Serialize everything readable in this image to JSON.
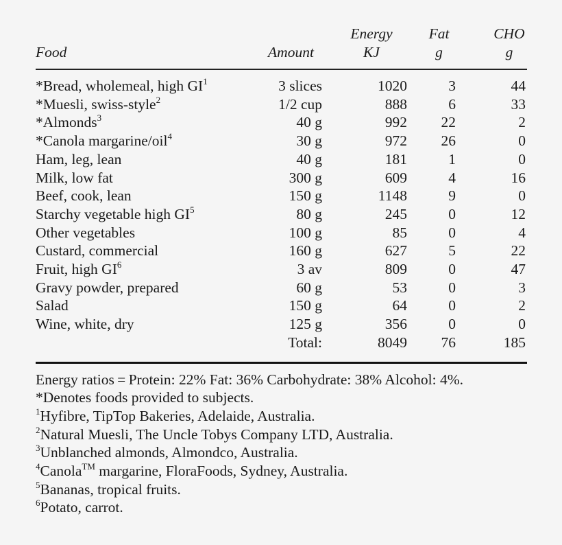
{
  "table": {
    "headers": {
      "food": "Food",
      "amount": "Amount",
      "energy_line1": "Energy",
      "energy_line2": "KJ",
      "fat_line1": "Fat",
      "fat_line2": "g",
      "cho_line1": "CHO",
      "cho_line2": "g"
    },
    "rows": [
      {
        "food": "*Bread, wholemeal, high GI",
        "sup": "1",
        "amount": "3 slices",
        "energy": "1020",
        "fat": "3",
        "cho": "44"
      },
      {
        "food": "*Muesli, swiss-style",
        "sup": "2",
        "amount": "1/2 cup",
        "energy": "888",
        "fat": "6",
        "cho": "33"
      },
      {
        "food": "*Almonds",
        "sup": "3",
        "amount": "40 g",
        "energy": "992",
        "fat": "22",
        "cho": "2"
      },
      {
        "food": "*Canola margarine/oil",
        "sup": "4",
        "amount": "30 g",
        "energy": "972",
        "fat": "26",
        "cho": "0"
      },
      {
        "food": "Ham, leg, lean",
        "sup": "",
        "amount": "40 g",
        "energy": "181",
        "fat": "1",
        "cho": "0"
      },
      {
        "food": "Milk, low fat",
        "sup": "",
        "amount": "300 g",
        "energy": "609",
        "fat": "4",
        "cho": "16"
      },
      {
        "food": "Beef, cook, lean",
        "sup": "",
        "amount": "150 g",
        "energy": "1148",
        "fat": "9",
        "cho": "0"
      },
      {
        "food": "Starchy vegetable high GI",
        "sup": "5",
        "amount": "80 g",
        "energy": "245",
        "fat": "0",
        "cho": "12"
      },
      {
        "food": "Other vegetables",
        "sup": "",
        "amount": "100 g",
        "energy": "85",
        "fat": "0",
        "cho": "4"
      },
      {
        "food": "Custard, commercial",
        "sup": "",
        "amount": "160 g",
        "energy": "627",
        "fat": "5",
        "cho": "22"
      },
      {
        "food": "Fruit, high GI",
        "sup": "6",
        "amount": "3 av",
        "energy": "809",
        "fat": "0",
        "cho": "47"
      },
      {
        "food": "Gravy powder, prepared",
        "sup": "",
        "amount": "60 g",
        "energy": "53",
        "fat": "0",
        "cho": "3"
      },
      {
        "food": "Salad",
        "sup": "",
        "amount": "150 g",
        "energy": "64",
        "fat": "0",
        "cho": "2"
      },
      {
        "food": "Wine, white, dry",
        "sup": "",
        "amount": "125 g",
        "energy": "356",
        "fat": "0",
        "cho": "0"
      }
    ],
    "total": {
      "label": "Total:",
      "energy": "8049",
      "fat": "76",
      "cho": "185"
    }
  },
  "notes": {
    "energy_ratios": "Energy ratios = Protein: 22% Fat: 36% Carbohydrate: 38% Alcohol: 4%.",
    "asterisk": "*Denotes foods provided to subjects.",
    "footnotes": [
      {
        "sup": "1",
        "text": "Hyfibre, TipTop Bakeries, Adelaide, Australia."
      },
      {
        "sup": "2",
        "text": "Natural Muesli, The Uncle Tobys Company LTD, Australia."
      },
      {
        "sup": "3",
        "text": "Unblanched almonds, Almondco, Australia."
      },
      {
        "sup": "4",
        "text_before": "Canola",
        "tm": "TM",
        "text_after": " margarine, FloraFoods, Sydney, Australia."
      },
      {
        "sup": "5",
        "text": "Bananas, tropical fruits."
      },
      {
        "sup": "6",
        "text": "Potato, carrot."
      }
    ]
  }
}
